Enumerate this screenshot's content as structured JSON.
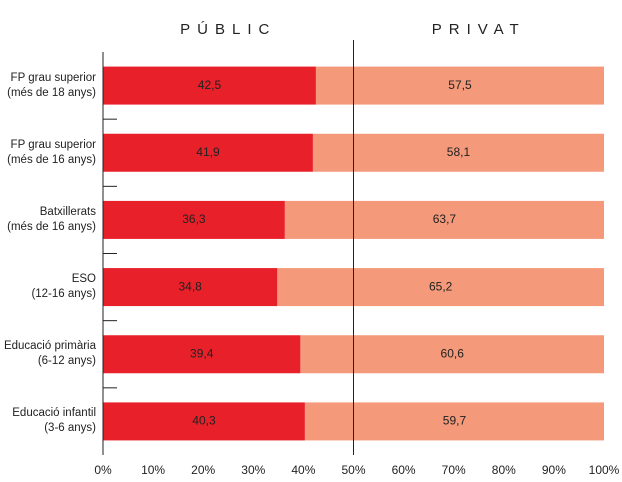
{
  "chart_data": {
    "type": "stacked-bar-horizontal",
    "categories": [
      "FP grau superior\n(més de 18 anys)",
      "FP grau superior\n(més de 16 anys)",
      "Batxillerats\n(més de 16 anys)",
      "ESO\n(12-16 anys)",
      "Educació primària\n(6-12 anys)",
      "Educació infantil\n(3-6 anys)"
    ],
    "series": [
      {
        "name": "PÚBLIC",
        "color": "#e8202a",
        "values": [
          42.5,
          41.9,
          36.3,
          34.8,
          39.4,
          40.3
        ],
        "value_labels": [
          "42,5",
          "41,9",
          "36,3",
          "34,8",
          "39,4",
          "40,3"
        ]
      },
      {
        "name": "PRIVAT",
        "color": "#f4997a",
        "values": [
          57.5,
          58.1,
          63.7,
          65.2,
          60.6,
          59.7
        ],
        "value_labels": [
          "57,5",
          "58,1",
          "63,7",
          "65,2",
          "60,6",
          "59,7"
        ]
      }
    ],
    "xlim": [
      0,
      100
    ],
    "xticks": [
      {
        "value": 0,
        "label": "0%"
      },
      {
        "value": 10,
        "label": "10%"
      },
      {
        "value": 20,
        "label": "20%"
      },
      {
        "value": 30,
        "label": "30%"
      },
      {
        "value": 40,
        "label": "40%"
      },
      {
        "value": 50,
        "label": "50%"
      },
      {
        "value": 60,
        "label": "60%"
      },
      {
        "value": 70,
        "label": "70%"
      },
      {
        "value": 80,
        "label": "80%"
      },
      {
        "value": 90,
        "label": "90%"
      },
      {
        "value": 100,
        "label": "100%"
      }
    ],
    "reference_line": 50
  }
}
